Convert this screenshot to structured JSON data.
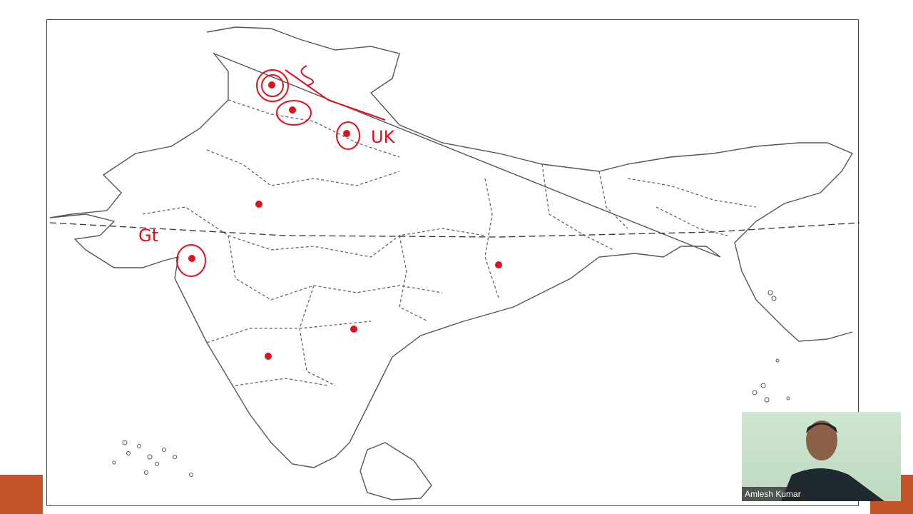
{
  "slide": {
    "annotations": {
      "north_label": "UK",
      "west_label": "Gt"
    },
    "marker_color": "#e0101e",
    "accent_color": "#c5532a"
  },
  "webcam": {
    "participant_name": "Amlesh Kumar"
  }
}
